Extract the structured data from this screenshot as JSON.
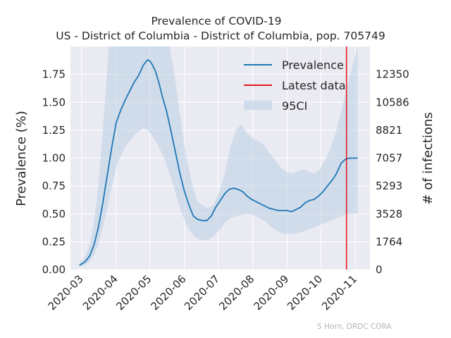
{
  "chart_data": {
    "type": "line",
    "title": "Prevalence of COVID-19",
    "subtitle": "US - District of Columbia - District of Columbia, pop. 705749",
    "xlabel": "",
    "ylabel": "Prevalence (%)",
    "y2label": "# of infections",
    "credit": "S Horn, DRDC CORA",
    "xlim": [
      "2020-02-20",
      "2020-11-14"
    ],
    "ylim": [
      0,
      2.0
    ],
    "x_ticks": [
      "2020-03",
      "2020-04",
      "2020-05",
      "2020-06",
      "2020-07",
      "2020-08",
      "2020-09",
      "2020-10",
      "2020-11"
    ],
    "x_tick_dates": [
      "2020-03-01",
      "2020-04-01",
      "2020-05-01",
      "2020-06-01",
      "2020-07-01",
      "2020-08-01",
      "2020-09-01",
      "2020-10-01",
      "2020-11-01"
    ],
    "y_ticks": [
      "0.00",
      "0.25",
      "0.50",
      "0.75",
      "1.00",
      "1.25",
      "1.50",
      "1.75"
    ],
    "y2_ticks": [
      "0",
      "1764",
      "3528",
      "5293",
      "7057",
      "8821",
      "10586",
      "12350"
    ],
    "grid": true,
    "legend_position": "top-right",
    "legend": [
      "Prevalence",
      "Latest data",
      "95CI"
    ],
    "colors": {
      "prevalence": "#1f77b4",
      "latest": "#e41a1c",
      "ci": "#bcd0e6",
      "plot_bg": "#eaeaf2",
      "grid": "#ffffff"
    },
    "latest_data_date": "2020-10-24",
    "series": [
      {
        "name": "Prevalence",
        "x": [
          "2020-02-28",
          "2020-03-04",
          "2020-03-08",
          "2020-03-12",
          "2020-03-16",
          "2020-03-20",
          "2020-03-24",
          "2020-03-28",
          "2020-04-01",
          "2020-04-05",
          "2020-04-09",
          "2020-04-13",
          "2020-04-17",
          "2020-04-21",
          "2020-04-25",
          "2020-04-29",
          "2020-05-01",
          "2020-05-03",
          "2020-05-06",
          "2020-05-09",
          "2020-05-12",
          "2020-05-16",
          "2020-05-20",
          "2020-05-24",
          "2020-05-28",
          "2020-06-01",
          "2020-06-05",
          "2020-06-09",
          "2020-06-13",
          "2020-06-17",
          "2020-06-21",
          "2020-06-25",
          "2020-06-29",
          "2020-07-03",
          "2020-07-07",
          "2020-07-11",
          "2020-07-15",
          "2020-07-19",
          "2020-07-23",
          "2020-07-27",
          "2020-07-31",
          "2020-08-04",
          "2020-08-08",
          "2020-08-12",
          "2020-08-16",
          "2020-08-20",
          "2020-08-24",
          "2020-08-28",
          "2020-09-01",
          "2020-09-05",
          "2020-09-09",
          "2020-09-13",
          "2020-09-17",
          "2020-09-21",
          "2020-09-25",
          "2020-09-29",
          "2020-10-03",
          "2020-10-07",
          "2020-10-11",
          "2020-10-15",
          "2020-10-19",
          "2020-10-23",
          "2020-10-27",
          "2020-10-31",
          "2020-11-03"
        ],
        "values": [
          0.04,
          0.07,
          0.12,
          0.22,
          0.38,
          0.6,
          0.85,
          1.1,
          1.32,
          1.43,
          1.52,
          1.6,
          1.68,
          1.74,
          1.83,
          1.88,
          1.87,
          1.84,
          1.78,
          1.68,
          1.56,
          1.42,
          1.24,
          1.05,
          0.86,
          0.7,
          0.58,
          0.48,
          0.45,
          0.44,
          0.44,
          0.48,
          0.56,
          0.62,
          0.68,
          0.72,
          0.73,
          0.72,
          0.7,
          0.66,
          0.63,
          0.61,
          0.59,
          0.57,
          0.55,
          0.54,
          0.53,
          0.53,
          0.53,
          0.52,
          0.54,
          0.56,
          0.6,
          0.62,
          0.63,
          0.66,
          0.7,
          0.75,
          0.8,
          0.86,
          0.95,
          0.99,
          1.0,
          1.0,
          1.0
        ]
      },
      {
        "name": "95CI",
        "x": [
          "2020-02-28",
          "2020-03-04",
          "2020-03-08",
          "2020-03-12",
          "2020-03-16",
          "2020-03-20",
          "2020-03-24",
          "2020-03-28",
          "2020-04-01",
          "2020-04-05",
          "2020-04-09",
          "2020-04-13",
          "2020-04-17",
          "2020-04-21",
          "2020-04-25",
          "2020-04-29",
          "2020-05-03",
          "2020-05-08",
          "2020-05-13",
          "2020-05-18",
          "2020-05-23",
          "2020-05-28",
          "2020-06-02",
          "2020-06-07",
          "2020-06-12",
          "2020-06-17",
          "2020-06-22",
          "2020-06-27",
          "2020-07-02",
          "2020-07-07",
          "2020-07-12",
          "2020-07-17",
          "2020-07-22",
          "2020-07-27",
          "2020-08-01",
          "2020-08-06",
          "2020-08-11",
          "2020-08-16",
          "2020-08-21",
          "2020-08-26",
          "2020-08-31",
          "2020-09-05",
          "2020-09-10",
          "2020-09-15",
          "2020-09-20",
          "2020-09-25",
          "2020-09-30",
          "2020-10-05",
          "2020-10-10",
          "2020-10-15",
          "2020-10-20",
          "2020-10-25",
          "2020-10-30",
          "2020-11-03"
        ],
        "lower": [
          0.02,
          0.04,
          0.07,
          0.13,
          0.23,
          0.38,
          0.55,
          0.75,
          0.92,
          1.02,
          1.1,
          1.15,
          1.2,
          1.24,
          1.27,
          1.25,
          1.2,
          1.12,
          1.02,
          0.88,
          0.72,
          0.55,
          0.42,
          0.33,
          0.28,
          0.26,
          0.27,
          0.3,
          0.35,
          0.42,
          0.46,
          0.48,
          0.49,
          0.5,
          0.49,
          0.47,
          0.44,
          0.4,
          0.36,
          0.33,
          0.32,
          0.32,
          0.33,
          0.34,
          0.36,
          0.38,
          0.4,
          0.42,
          0.44,
          0.46,
          0.48,
          0.5,
          0.5,
          0.5
        ],
        "upper": [
          0.06,
          0.12,
          0.22,
          0.42,
          0.75,
          1.25,
          1.8,
          2.4,
          3.0,
          3.4,
          3.5,
          3.4,
          3.2,
          3.0,
          2.8,
          2.6,
          2.4,
          2.3,
          2.2,
          2.05,
          1.75,
          1.4,
          1.05,
          0.8,
          0.62,
          0.58,
          0.55,
          0.58,
          0.7,
          0.85,
          1.1,
          1.25,
          1.3,
          1.22,
          1.18,
          1.15,
          1.12,
          1.05,
          0.98,
          0.92,
          0.88,
          0.86,
          0.88,
          0.9,
          0.88,
          0.86,
          0.9,
          0.98,
          1.1,
          1.25,
          1.45,
          1.65,
          1.85,
          2.0
        ]
      }
    ]
  }
}
